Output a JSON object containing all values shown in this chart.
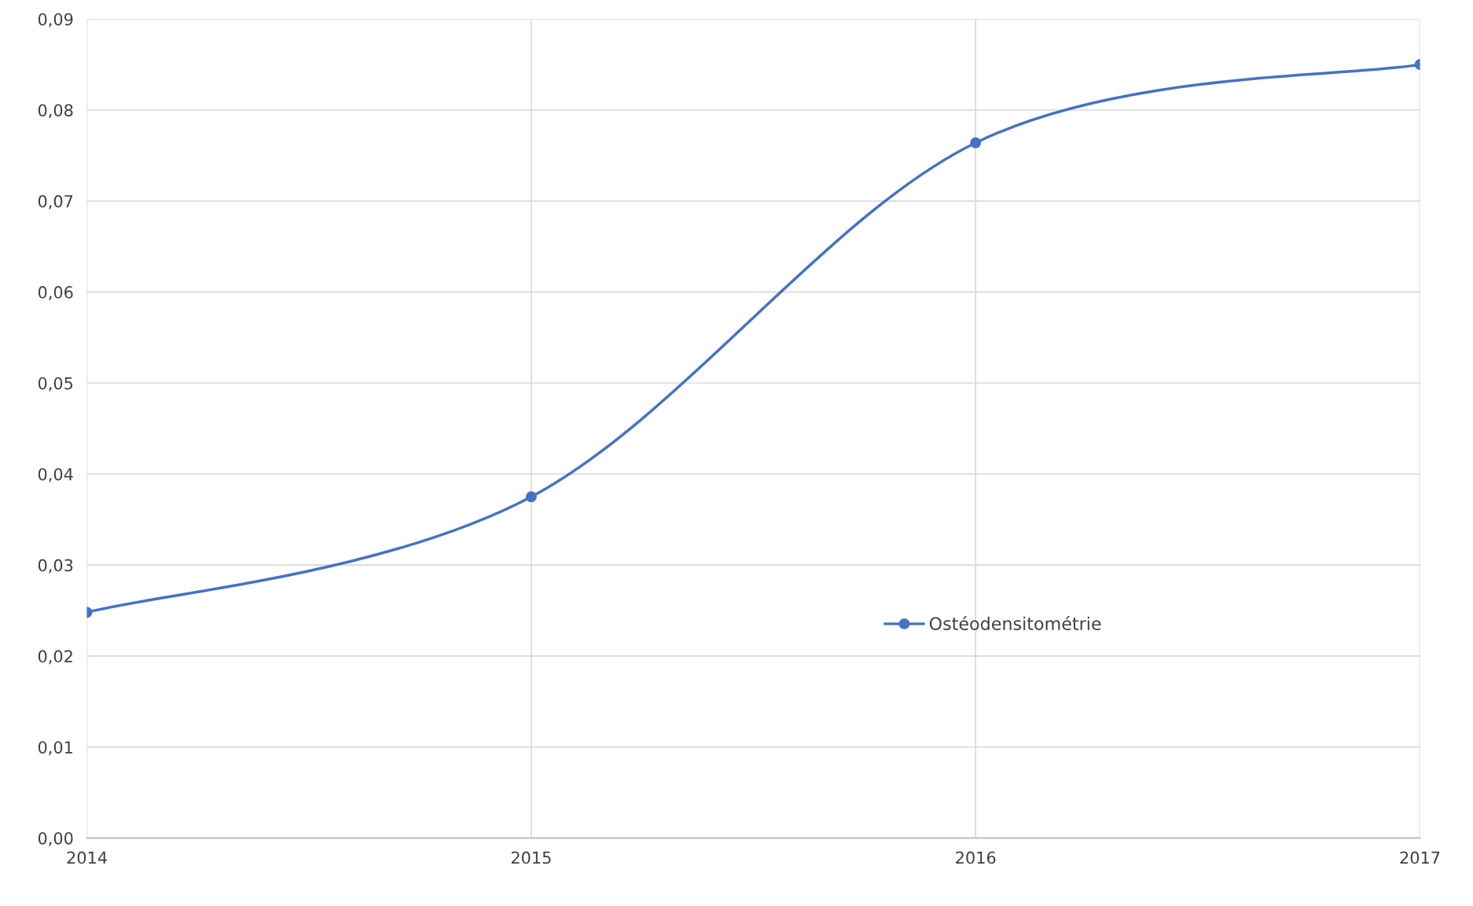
{
  "chart_data": {
    "type": "line",
    "x": [
      2014,
      2015,
      2016,
      2017
    ],
    "series": [
      {
        "name": "Ostéodensitométrie",
        "color": "#4472c4",
        "values": [
          0.0248,
          0.0375,
          0.0764,
          0.085
        ]
      }
    ],
    "xlim": [
      2014,
      2017
    ],
    "xticks": [
      2014,
      2015,
      2016,
      2017
    ],
    "ylim": [
      0,
      0.09
    ],
    "yticks": [
      {
        "value": 0,
        "label": "0,00"
      },
      {
        "value": 0.01,
        "label": "0,01"
      },
      {
        "value": 0.02,
        "label": "0,02"
      },
      {
        "value": 0.03,
        "label": "0,03"
      },
      {
        "value": 0.04,
        "label": "0,04"
      },
      {
        "value": 0.05,
        "label": "0,05"
      },
      {
        "value": 0.06,
        "label": "0,06"
      },
      {
        "value": 0.07,
        "label": "0,07"
      },
      {
        "value": 0.08,
        "label": "0,08"
      },
      {
        "value": 0.09,
        "label": "0,09"
      }
    ],
    "grid": true,
    "legend": "bottom right",
    "marker": "circle",
    "line_style": "solid"
  }
}
